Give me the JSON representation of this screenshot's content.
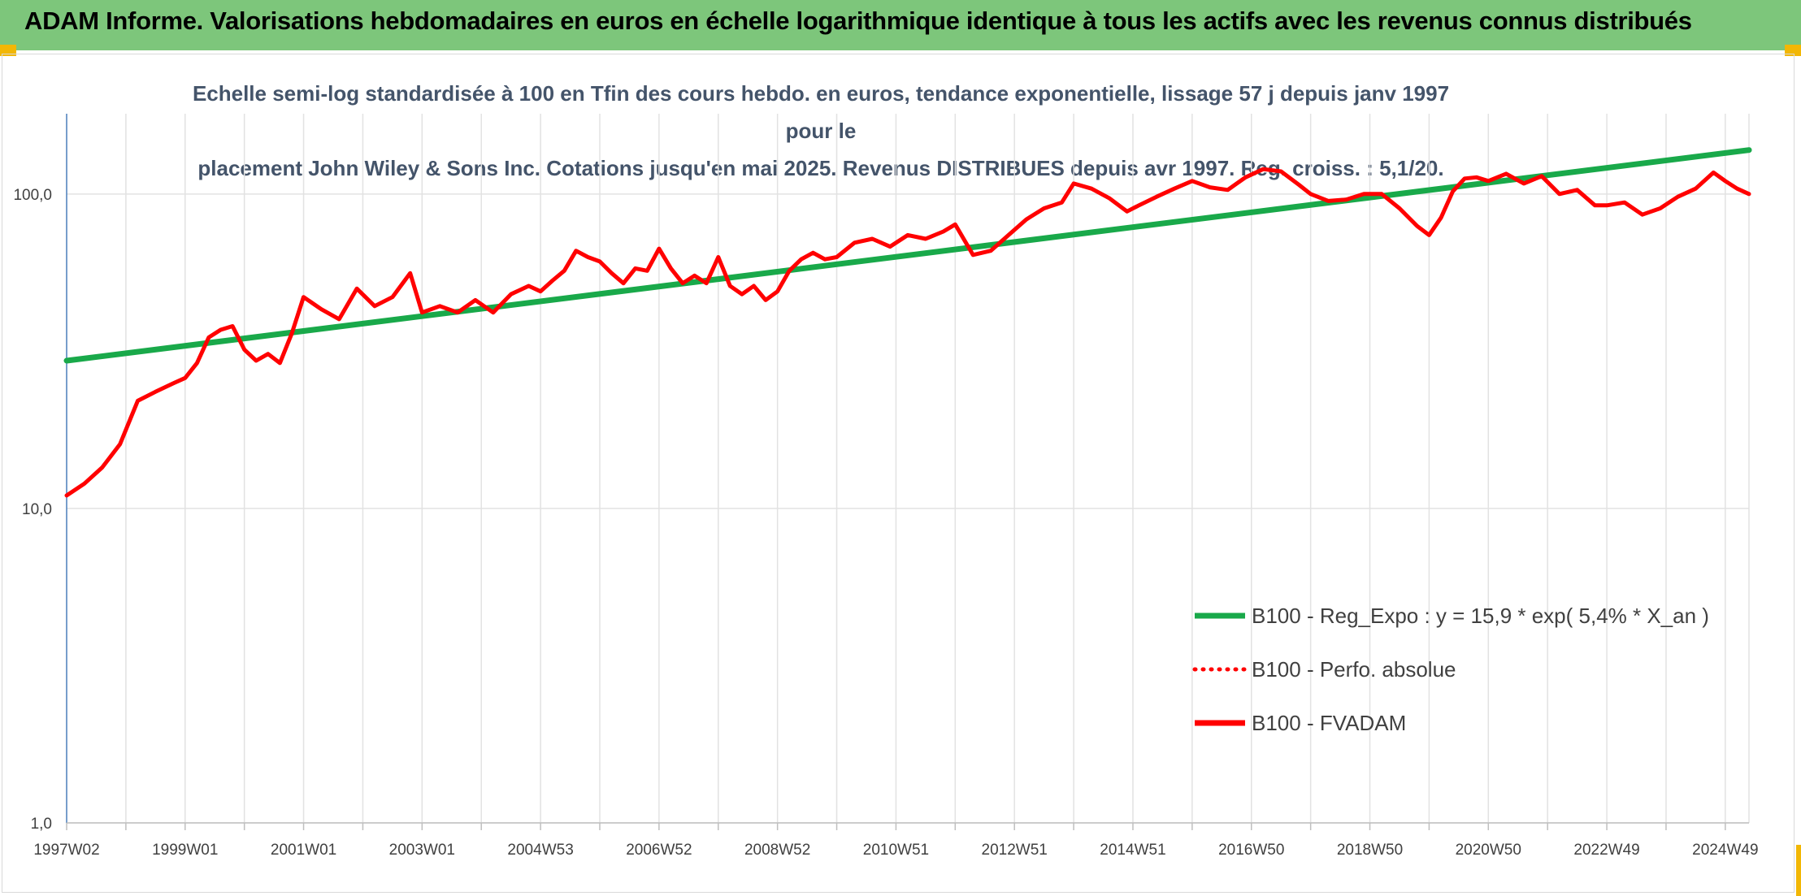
{
  "banner": {
    "title": "ADAM Informe. Valorisations hebdomadaires en euros en échelle logarithmique identique à tous les actifs avec les revenus connus distribués"
  },
  "chart_data": {
    "type": "line",
    "title_line1": "Echelle semi-log standardisée à 100 en Tfin des cours hebdo. en euros, tendance exponentielle, lissage 57 j depuis janv 1997 pour le",
    "title_line2": "placement John Wiley & Sons Inc. Cotations jusqu'en mai 2025. Revenus DISTRIBUES depuis avr 1997. Reg. croiss. : 5,1/20.",
    "y_scale": "log",
    "ylim": [
      1,
      180
    ],
    "xlim": [
      1997.0,
      2025.4
    ],
    "y_ticks": [
      {
        "value": 1,
        "label": "1,0"
      },
      {
        "value": 10,
        "label": "10,0"
      },
      {
        "value": 100,
        "label": "100,0"
      }
    ],
    "x_ticks": [
      {
        "value": 1997.0,
        "label": "1997W02"
      },
      {
        "value": 1998.0,
        "label": ""
      },
      {
        "value": 1999.0,
        "label": "1999W01"
      },
      {
        "value": 2000.0,
        "label": ""
      },
      {
        "value": 2001.0,
        "label": "2001W01"
      },
      {
        "value": 2002.0,
        "label": ""
      },
      {
        "value": 2003.0,
        "label": "2003W01"
      },
      {
        "value": 2004.0,
        "label": ""
      },
      {
        "value": 2005.0,
        "label": "2004W53"
      },
      {
        "value": 2006.0,
        "label": ""
      },
      {
        "value": 2007.0,
        "label": "2006W52"
      },
      {
        "value": 2008.0,
        "label": ""
      },
      {
        "value": 2009.0,
        "label": "2008W52"
      },
      {
        "value": 2010.0,
        "label": ""
      },
      {
        "value": 2011.0,
        "label": "2010W51"
      },
      {
        "value": 2012.0,
        "label": ""
      },
      {
        "value": 2013.0,
        "label": "2012W51"
      },
      {
        "value": 2014.0,
        "label": ""
      },
      {
        "value": 2015.0,
        "label": "2014W51"
      },
      {
        "value": 2016.0,
        "label": ""
      },
      {
        "value": 2017.0,
        "label": "2016W50"
      },
      {
        "value": 2018.0,
        "label": ""
      },
      {
        "value": 2019.0,
        "label": "2018W50"
      },
      {
        "value": 2020.0,
        "label": ""
      },
      {
        "value": 2021.0,
        "label": "2020W50"
      },
      {
        "value": 2022.0,
        "label": ""
      },
      {
        "value": 2023.0,
        "label": "2022W49"
      },
      {
        "value": 2024.0,
        "label": ""
      },
      {
        "value": 2025.0,
        "label": "2024W49"
      }
    ],
    "series": [
      {
        "name": "B100 - Reg_Expo : y = 15,9 * exp( 5,4% *  X_an )",
        "color": "#19a94a",
        "style": "solid",
        "x": [
          1997.0,
          2025.4
        ],
        "y": [
          29.5,
          138
        ]
      },
      {
        "name": "B100 - Perfo. absolue",
        "color": "#ff0000",
        "style": "dotted",
        "x": [],
        "y": []
      },
      {
        "name": "B100 - FVADAM",
        "color": "#ff0000",
        "style": "solid",
        "x": [
          1997.0,
          1997.3,
          1997.6,
          1997.9,
          1998.2,
          1998.5,
          1998.8,
          1999.0,
          1999.2,
          1999.4,
          1999.6,
          1999.8,
          2000.0,
          2000.2,
          2000.4,
          2000.6,
          2000.8,
          2001.0,
          2001.3,
          2001.6,
          2001.9,
          2002.2,
          2002.5,
          2002.8,
          2003.0,
          2003.3,
          2003.6,
          2003.9,
          2004.2,
          2004.5,
          2004.8,
          2005.0,
          2005.2,
          2005.4,
          2005.6,
          2005.8,
          2006.0,
          2006.2,
          2006.4,
          2006.6,
          2006.8,
          2007.0,
          2007.2,
          2007.4,
          2007.6,
          2007.8,
          2008.0,
          2008.2,
          2008.4,
          2008.6,
          2008.8,
          2009.0,
          2009.2,
          2009.4,
          2009.6,
          2009.8,
          2010.0,
          2010.3,
          2010.6,
          2010.9,
          2011.2,
          2011.5,
          2011.8,
          2012.0,
          2012.3,
          2012.6,
          2012.9,
          2013.2,
          2013.5,
          2013.8,
          2014.0,
          2014.3,
          2014.6,
          2014.9,
          2015.1,
          2015.4,
          2015.7,
          2016.0,
          2016.3,
          2016.6,
          2016.9,
          2017.2,
          2017.5,
          2017.8,
          2018.0,
          2018.3,
          2018.6,
          2018.9,
          2019.2,
          2019.5,
          2019.8,
          2020.0,
          2020.2,
          2020.4,
          2020.6,
          2020.8,
          2021.0,
          2021.3,
          2021.6,
          2021.9,
          2022.2,
          2022.5,
          2022.8,
          2023.0,
          2023.3,
          2023.6,
          2023.9,
          2024.2,
          2024.5,
          2024.8,
          2025.0,
          2025.2,
          2025.4
        ],
        "y": [
          11.0,
          12.0,
          13.5,
          16.0,
          22.0,
          23.5,
          25.0,
          26.0,
          29.0,
          35.0,
          37.0,
          38.0,
          32.0,
          29.5,
          31.0,
          29.0,
          36.0,
          47.0,
          43.0,
          40.0,
          50.0,
          44.0,
          47.0,
          56.0,
          42.0,
          44.0,
          42.0,
          46.0,
          42.0,
          48.0,
          51.0,
          49.0,
          53.0,
          57.0,
          66.0,
          63.0,
          61.0,
          56.0,
          52.0,
          58.0,
          57.0,
          67.0,
          58.0,
          52.0,
          55.0,
          52.0,
          63.0,
          51.0,
          48.0,
          51.0,
          46.0,
          49.0,
          57.0,
          62.0,
          65.0,
          62.0,
          63.0,
          70.0,
          72.0,
          68.0,
          74.0,
          72.0,
          76.0,
          80.0,
          64.0,
          66.0,
          74.0,
          83.0,
          90.0,
          94.0,
          108.0,
          104.0,
          97.0,
          88.0,
          92.0,
          98.0,
          104.0,
          110.0,
          105.0,
          103.0,
          113.0,
          120.0,
          118.0,
          107.0,
          100.0,
          95.0,
          96.0,
          100.0,
          100.0,
          90.0,
          79.0,
          74.0,
          84.0,
          102.0,
          112.0,
          113.0,
          110.0,
          116.0,
          108.0,
          114.0,
          100.0,
          103.0,
          92.0,
          92.0,
          94.0,
          86.0,
          90.0,
          98.0,
          104.0,
          117.0,
          110.0,
          104.0,
          100.0
        ]
      }
    ]
  }
}
